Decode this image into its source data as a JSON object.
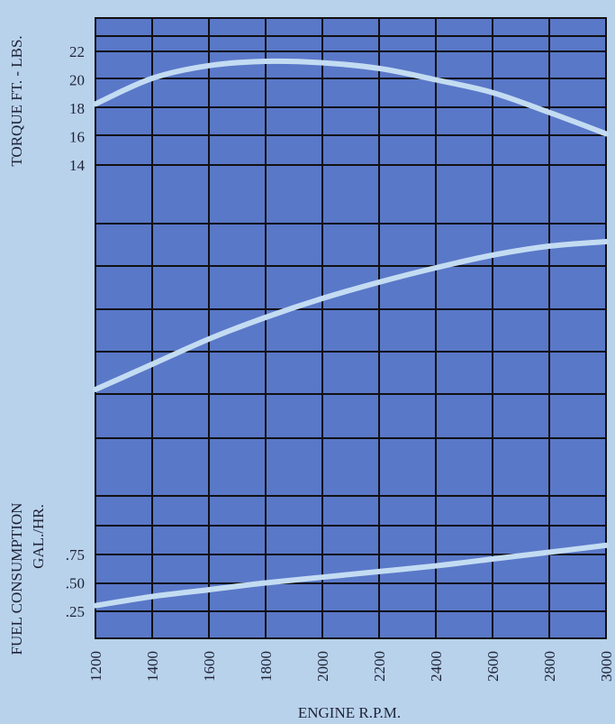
{
  "chart_data": {
    "type": "line",
    "title": "",
    "xlabel": "ENGINE R.P.M.",
    "x_ticks": [
      "1200",
      "1400",
      "1600",
      "1800",
      "2000",
      "2200",
      "2400",
      "2600",
      "2800",
      "3000"
    ],
    "xlim": [
      1200,
      3000
    ],
    "grid": true,
    "colors": {
      "background": "#b9d2ec",
      "plot_area": "#5a78c8",
      "grid": "#111111",
      "curve": "#c3dcf2"
    },
    "torque_axis": {
      "label": "TORQUE FT. - LBS.",
      "ticks": [
        "22",
        "20",
        "18",
        "16",
        "14"
      ]
    },
    "fuel_axis": {
      "label_line1": "FUEL CONSUMPTION",
      "label_line2": "GAL./HR.",
      "ticks": [
        ".75",
        ".50",
        ".25"
      ]
    },
    "series": [
      {
        "unit": "ft-lbs",
        "x": [
          1200,
          1400,
          1600,
          1800,
          2000,
          2200,
          2400,
          2600,
          2800,
          3000
        ],
        "y": [
          18.3,
          20.1,
          21.0,
          21.3,
          21.2,
          20.8,
          20.0,
          19.1,
          17.7,
          16.2
        ]
      },
      {
        "unit": "",
        "x": [
          1200,
          1400,
          1600,
          1800,
          2000,
          2200,
          2400,
          2600,
          2800,
          3000
        ],
        "y": null
      },
      {
        "unit": "gal/hr",
        "x": [
          1200,
          1400,
          1600,
          1800,
          2000,
          2200,
          2400,
          2600,
          2800,
          3000
        ],
        "y": [
          0.3,
          0.38,
          0.44,
          0.5,
          0.55,
          0.6,
          0.65,
          0.71,
          0.77,
          0.83
        ]
      }
    ]
  }
}
